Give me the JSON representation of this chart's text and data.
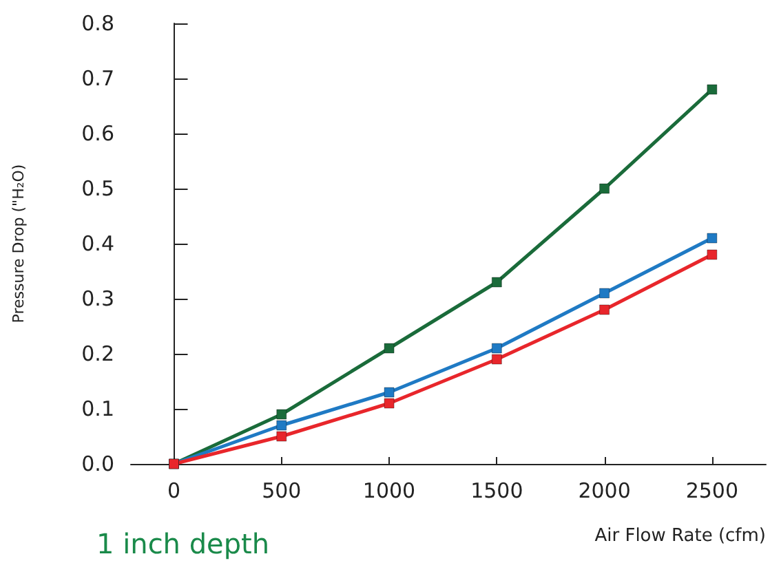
{
  "chart_data": {
    "type": "line",
    "xlabel": "Air Flow Rate (cfm)",
    "ylabel": "Pressure Drop (\"H₂O)",
    "annotations": [
      "1 inch depth"
    ],
    "x": [
      0,
      500,
      1000,
      1500,
      2000,
      2500
    ],
    "series": [
      {
        "color": "#1a6b3a",
        "values": [
          0,
          0.09,
          0.21,
          0.33,
          0.5,
          0.68
        ]
      },
      {
        "color": "#1f7ac4",
        "values": [
          0,
          0.07,
          0.13,
          0.21,
          0.31,
          0.41
        ]
      },
      {
        "color": "#e8262b",
        "values": [
          0,
          0.05,
          0.11,
          0.19,
          0.28,
          0.38
        ]
      }
    ],
    "xlim": [
      -200,
      2750
    ],
    "xticks": [
      0,
      500,
      1000,
      1500,
      2000,
      2500
    ],
    "ylim": [
      0,
      0.8
    ],
    "yticks": [
      {
        "value": 0,
        "label": "0.0"
      },
      0.1,
      0.2,
      0.3,
      0.4,
      0.5,
      0.6,
      0.7,
      0.8
    ],
    "marker": "square",
    "line_style": "solid"
  }
}
